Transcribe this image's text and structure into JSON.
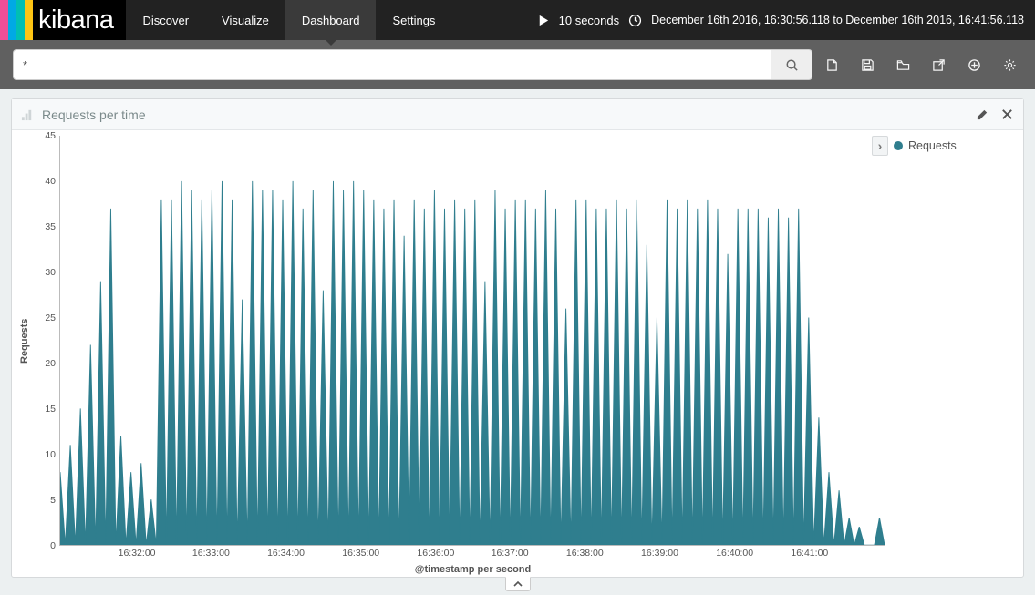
{
  "brand": {
    "text": "kibana",
    "stripe_colors": [
      "#f04e98",
      "#00a9e5",
      "#00bfb3",
      "#fec514"
    ]
  },
  "nav": {
    "tabs": [
      {
        "label": "Discover",
        "active": false
      },
      {
        "label": "Visualize",
        "active": false
      },
      {
        "label": "Dashboard",
        "active": true
      },
      {
        "label": "Settings",
        "active": false
      }
    ],
    "refresh_interval": "10 seconds",
    "time_range": "December 16th 2016, 16:30:56.118 to December 16th 2016, 16:41:56.118"
  },
  "search": {
    "value": "*"
  },
  "toolbar_icons": [
    "new-dashboard-icon",
    "save-icon",
    "open-icon",
    "share-icon",
    "add-panel-icon",
    "settings-gear-icon"
  ],
  "panel": {
    "title": "Requests per time",
    "legend_label": "Requests",
    "chart": {
      "type": "area",
      "ylabel": "Requests",
      "xlabel": "@timestamp per second",
      "series_color": "#2f7e8e",
      "background_color": "#ffffff",
      "axis_color": "#bbbbbb",
      "label_color": "#555555",
      "y": {
        "min": 0,
        "max": 45,
        "step": 5
      },
      "x_ticks": [
        {
          "pos": 0.092,
          "label": "16:32:00"
        },
        {
          "pos": 0.182,
          "label": "16:33:00"
        },
        {
          "pos": 0.273,
          "label": "16:34:00"
        },
        {
          "pos": 0.364,
          "label": "16:35:00"
        },
        {
          "pos": 0.455,
          "label": "16:36:00"
        },
        {
          "pos": 0.545,
          "label": "16:37:00"
        },
        {
          "pos": 0.636,
          "label": "16:38:00"
        },
        {
          "pos": 0.727,
          "label": "16:39:00"
        },
        {
          "pos": 0.818,
          "label": "16:40:00"
        },
        {
          "pos": 0.909,
          "label": "16:41:00"
        }
      ],
      "values": [
        8,
        0,
        11,
        0,
        15,
        0,
        22,
        0,
        29,
        0,
        37,
        0,
        12,
        0,
        8,
        0,
        9,
        0,
        5,
        0,
        38,
        0,
        38,
        0,
        40,
        0,
        39,
        0,
        38,
        0,
        39,
        0,
        40,
        0,
        38,
        0,
        27,
        0,
        40,
        0,
        39,
        0,
        39,
        0,
        38,
        0,
        40,
        0,
        37,
        0,
        39,
        0,
        28,
        0,
        40,
        0,
        39,
        0,
        40,
        0,
        39,
        0,
        38,
        0,
        37,
        0,
        38,
        0,
        34,
        0,
        38,
        0,
        37,
        0,
        39,
        0,
        37,
        0,
        38,
        0,
        37,
        0,
        38,
        0,
        29,
        0,
        39,
        0,
        37,
        0,
        38,
        0,
        38,
        0,
        37,
        0,
        39,
        0,
        37,
        0,
        26,
        0,
        38,
        0,
        38,
        0,
        37,
        0,
        37,
        0,
        38,
        0,
        37,
        0,
        38,
        0,
        33,
        0,
        25,
        0,
        38,
        0,
        37,
        0,
        38,
        0,
        37,
        0,
        38,
        0,
        37,
        0,
        32,
        0,
        37,
        0,
        37,
        0,
        37,
        0,
        36,
        0,
        37,
        0,
        36,
        0,
        37,
        0,
        25,
        0,
        14,
        0,
        8,
        0,
        6,
        0,
        3,
        0,
        2,
        0,
        0,
        0,
        3,
        0
      ]
    }
  }
}
